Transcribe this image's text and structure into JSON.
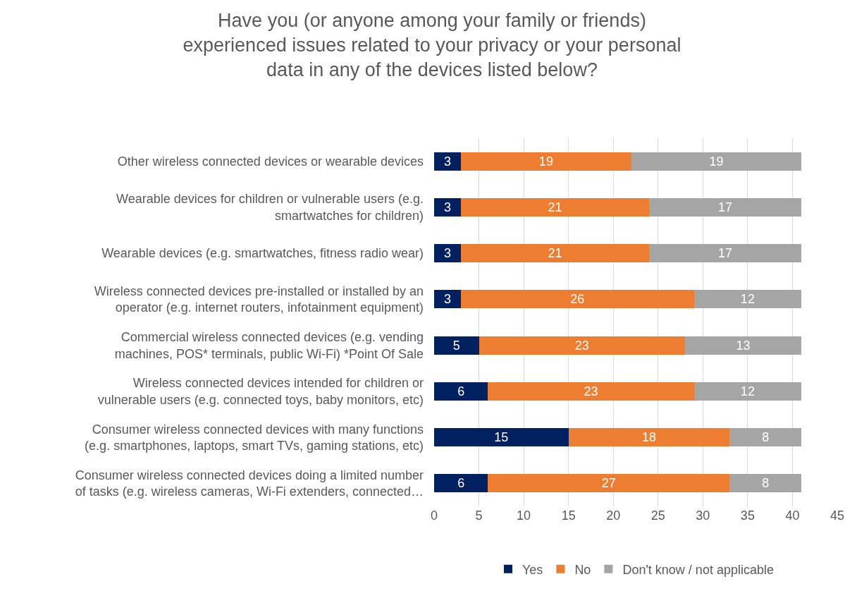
{
  "chart_data": {
    "type": "bar",
    "orientation": "horizontal",
    "stacked": true,
    "data_labels": true,
    "grid": "x",
    "legend": "bottom",
    "title": "Have you (or anyone among your family or friends) experienced issues related to your privacy or your personal data in any of the devices listed below?",
    "categories": [
      "Other wireless connected devices or wearable devices",
      "Wearable devices for children or vulnerable users (e.g. smartwatches for children)",
      "Wearable devices (e.g. smartwatches, fitness radio wear)",
      "Wireless connected devices pre-installed or installed by an operator (e.g. internet routers, infotainment equipment)",
      "Commercial wireless connected devices (e.g. vending machines, POS* terminals, public Wi-Fi) *Point Of Sale",
      "Wireless connected devices intended for children or vulnerable users (e.g. connected toys, baby monitors, etc)",
      "Consumer wireless connected devices with many functions (e.g. smartphones, laptops, smart TVs, gaming stations, etc)",
      "Consumer wireless connected devices doing a limited number of tasks (e.g. wireless cameras, Wi-Fi extenders, connected…"
    ],
    "series": [
      {
        "name": "Yes",
        "color": "#002060",
        "values": [
          3,
          3,
          3,
          3,
          5,
          6,
          15,
          6
        ]
      },
      {
        "name": "No",
        "color": "#ed7d31",
        "values": [
          19,
          21,
          21,
          26,
          23,
          23,
          18,
          27
        ]
      },
      {
        "name": "Don't know / not applicable",
        "color": "#a5a5a5",
        "values": [
          19,
          17,
          17,
          12,
          13,
          12,
          8,
          8
        ]
      }
    ],
    "xlim": [
      0,
      45
    ],
    "xticks": [
      0,
      5,
      10,
      15,
      20,
      25,
      30,
      35,
      40,
      45
    ]
  }
}
